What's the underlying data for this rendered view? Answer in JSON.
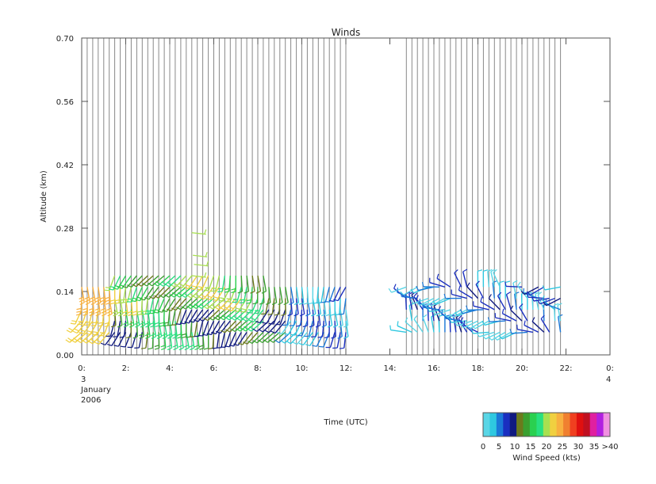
{
  "chart_data": {
    "type": "wind-barb",
    "title": "Winds",
    "xlabel": "Time (UTC)",
    "ylabel": "Altitude (km)",
    "x_ticks": [
      "0:",
      "2:",
      "4:",
      "6:",
      "8:",
      "10:",
      "12:",
      "14:",
      "16:",
      "18:",
      "20:",
      "22:",
      "0:"
    ],
    "x_tick_hours": [
      0,
      2,
      4,
      6,
      8,
      10,
      12,
      14,
      16,
      18,
      20,
      22,
      24
    ],
    "date_label": [
      "3",
      "January",
      "2006"
    ],
    "end_day_label": "4",
    "y_ticks": [
      "0.00",
      "0.14",
      "0.28",
      "0.42",
      "0.56",
      "0.70"
    ],
    "y_tick_values": [
      0,
      0.14,
      0.28,
      0.42,
      0.56,
      0.7
    ],
    "xlim_hours": [
      0,
      24
    ],
    "ylim_km": [
      0,
      0.7
    ],
    "grid": "vertical lines at each profile time",
    "profile_times_hours": {
      "segment_1": {
        "start": 0.0,
        "end": 12.0,
        "step": 0.25
      },
      "segment_2": {
        "start": 14.75,
        "end": 21.75,
        "step": 0.25
      }
    },
    "barb_altitudes_km": [
      0.05,
      0.075,
      0.1,
      0.125,
      0.15,
      0.175
    ],
    "max_barb_altitude_km": 0.27,
    "colorbar": {
      "label": "Wind Speed (kts)",
      "tick_labels": [
        "0",
        "5",
        "10",
        "15",
        "20",
        "25",
        "30",
        "35",
        ">40"
      ],
      "colors": [
        "#5ad6e6",
        "#2ec8e0",
        "#1a78d8",
        "#1a2fc0",
        "#101a80",
        "#6b7a1c",
        "#3aa030",
        "#2ad050",
        "#28e080",
        "#a8e050",
        "#f0d040",
        "#f8b040",
        "#f08030",
        "#f04020",
        "#e01010",
        "#c01020",
        "#e020a0",
        "#b020e0",
        "#f090e0"
      ]
    }
  }
}
